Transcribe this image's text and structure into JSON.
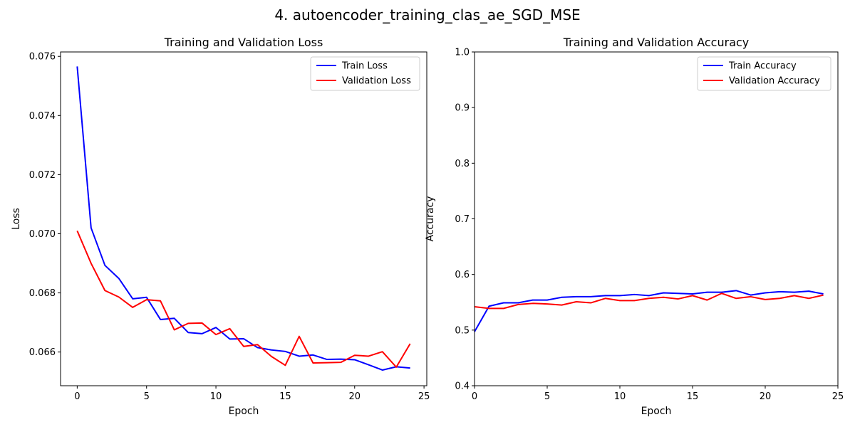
{
  "figure": {
    "suptitle": "4. autoencoder_training_clas_ae_SGD_MSE"
  },
  "chart_data": [
    {
      "type": "line",
      "title": "Training and Validation Loss",
      "xlabel": "Epoch",
      "ylabel": "Loss",
      "xlim": [
        -1.2,
        25.2
      ],
      "ylim": [
        0.06486,
        0.07615
      ],
      "xticks": [
        0,
        5,
        10,
        15,
        20,
        25
      ],
      "yticks": [
        0.066,
        0.068,
        0.07,
        0.072,
        0.074,
        0.076
      ],
      "ytick_labels": [
        "0.066",
        "0.068",
        "0.070",
        "0.072",
        "0.074",
        "0.076"
      ],
      "legend_position": "top-right",
      "grid": false,
      "x": [
        0,
        1,
        2,
        3,
        4,
        5,
        6,
        7,
        8,
        9,
        10,
        11,
        12,
        13,
        14,
        15,
        16,
        17,
        18,
        19,
        20,
        21,
        22,
        23,
        24
      ],
      "series": [
        {
          "name": "Train Loss",
          "color": "#0000ff",
          "values": [
            0.07566,
            0.0702,
            0.06893,
            0.06849,
            0.0678,
            0.06785,
            0.0671,
            0.06714,
            0.06666,
            0.06662,
            0.06683,
            0.06644,
            0.06645,
            0.06615,
            0.06607,
            0.06602,
            0.06586,
            0.0659,
            0.06575,
            0.06576,
            0.06574,
            0.06557,
            0.06539,
            0.0655,
            0.06546
          ]
        },
        {
          "name": "Validation Loss",
          "color": "#ff0000",
          "values": [
            0.0701,
            0.069,
            0.06808,
            0.06786,
            0.06751,
            0.06777,
            0.06773,
            0.06675,
            0.06697,
            0.06698,
            0.06659,
            0.06679,
            0.06619,
            0.06625,
            0.06585,
            0.06555,
            0.06653,
            0.06563,
            0.06564,
            0.06565,
            0.06589,
            0.06586,
            0.06601,
            0.06549,
            0.06628
          ]
        }
      ]
    },
    {
      "type": "line",
      "title": "Training and Validation Accuracy",
      "xlabel": "Epoch",
      "ylabel": "Accuracy",
      "xlim": [
        0,
        25
      ],
      "ylim": [
        0.4,
        1.0
      ],
      "xticks": [
        0,
        5,
        10,
        15,
        20,
        25
      ],
      "yticks": [
        0.4,
        0.5,
        0.6,
        0.7,
        0.8,
        0.9,
        1.0
      ],
      "ytick_labels": [
        "0.4",
        "0.5",
        "0.6",
        "0.7",
        "0.8",
        "0.9",
        "1.0"
      ],
      "legend_position": "top-right",
      "grid": false,
      "x": [
        0,
        1,
        2,
        3,
        4,
        5,
        6,
        7,
        8,
        9,
        10,
        11,
        12,
        13,
        14,
        15,
        16,
        17,
        18,
        19,
        20,
        21,
        22,
        23,
        24
      ],
      "series": [
        {
          "name": "Train Accuracy",
          "color": "#0000ff",
          "values": [
            0.497,
            0.543,
            0.549,
            0.549,
            0.554,
            0.554,
            0.559,
            0.56,
            0.56,
            0.562,
            0.562,
            0.564,
            0.562,
            0.567,
            0.566,
            0.565,
            0.568,
            0.568,
            0.571,
            0.563,
            0.567,
            0.569,
            0.568,
            0.57,
            0.565
          ]
        },
        {
          "name": "Validation Accuracy",
          "color": "#ff0000",
          "values": [
            0.542,
            0.539,
            0.539,
            0.546,
            0.548,
            0.547,
            0.545,
            0.551,
            0.549,
            0.557,
            0.553,
            0.553,
            0.557,
            0.559,
            0.556,
            0.562,
            0.554,
            0.566,
            0.557,
            0.56,
            0.555,
            0.557,
            0.562,
            0.557,
            0.563
          ]
        }
      ]
    }
  ]
}
